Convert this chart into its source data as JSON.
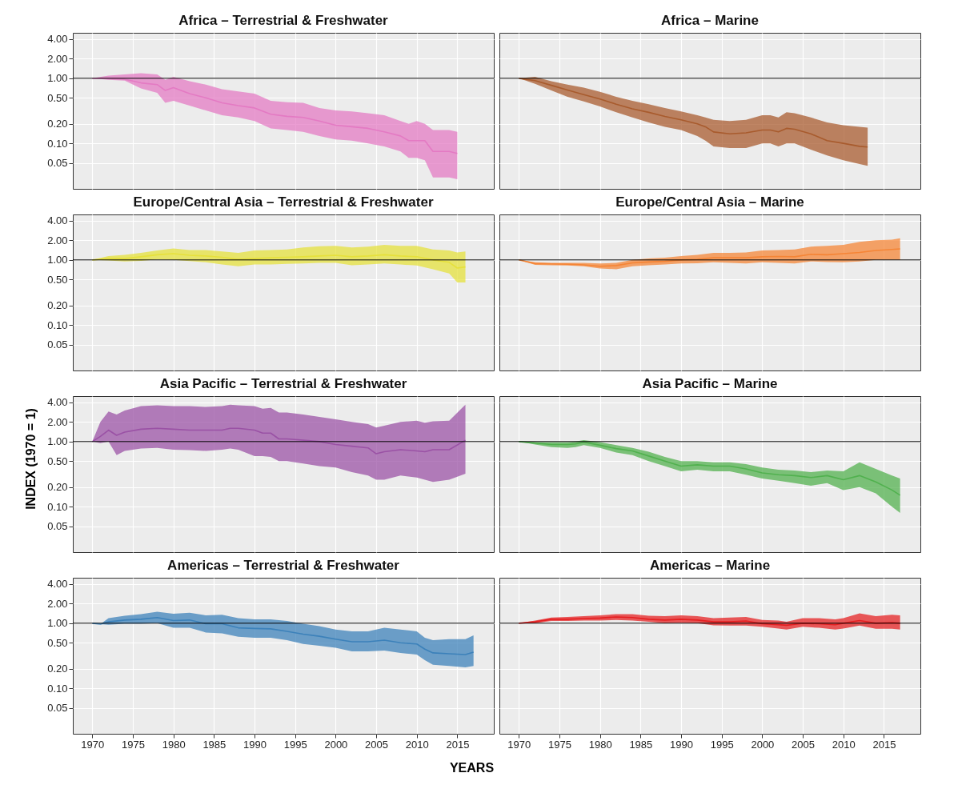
{
  "chart_data": [
    {
      "type": "line",
      "title": "Africa – Terrestrial & Freshwater",
      "log": "y",
      "grid": true,
      "tick_labels": "y",
      "xlim": [
        1967.6,
        2019.5
      ],
      "xticks": [
        1970,
        1975,
        1980,
        1985,
        1990,
        1995,
        2000,
        2005,
        2010,
        2015
      ],
      "ylim": [
        0.02,
        5
      ],
      "yticks": [
        {
          "value": 0.05,
          "label": "0.05"
        },
        {
          "value": 0.1,
          "label": "0.10"
        },
        {
          "value": 0.2,
          "label": "0.20"
        },
        {
          "value": 0.5,
          "label": "0.50"
        },
        {
          "value": 1,
          "label": "1.00"
        },
        {
          "value": 2,
          "label": "2.00"
        },
        {
          "value": 4,
          "label": "4.00"
        }
      ],
      "ref_lines": [
        {
          "axis": "y",
          "value": 1
        }
      ],
      "x": [
        1970,
        1972,
        1974,
        1976,
        1978,
        1979,
        1980,
        1982,
        1984,
        1986,
        1988,
        1990,
        1992,
        1994,
        1996,
        1998,
        2000,
        2002,
        2004,
        2006,
        2008,
        2009,
        2010,
        2011,
        2012,
        2014,
        2015
      ],
      "series": [
        {
          "color": "#e377c2",
          "values": [
            1.0,
            1.0,
            0.97,
            0.85,
            0.8,
            0.65,
            0.72,
            0.58,
            0.5,
            0.42,
            0.38,
            0.35,
            0.28,
            0.26,
            0.25,
            0.22,
            0.19,
            0.18,
            0.17,
            0.15,
            0.13,
            0.11,
            0.11,
            0.11,
            0.075,
            0.075,
            0.07
          ],
          "upper": [
            1.0,
            1.1,
            1.15,
            1.2,
            1.15,
            0.95,
            1.05,
            0.9,
            0.8,
            0.68,
            0.63,
            0.58,
            0.45,
            0.43,
            0.42,
            0.35,
            0.32,
            0.31,
            0.29,
            0.27,
            0.22,
            0.2,
            0.22,
            0.2,
            0.16,
            0.16,
            0.15
          ],
          "lower": [
            1.0,
            0.95,
            0.92,
            0.7,
            0.6,
            0.42,
            0.45,
            0.38,
            0.32,
            0.27,
            0.25,
            0.22,
            0.17,
            0.16,
            0.15,
            0.13,
            0.115,
            0.11,
            0.1,
            0.09,
            0.075,
            0.06,
            0.06,
            0.055,
            0.03,
            0.03,
            0.028
          ]
        }
      ]
    },
    {
      "type": "line",
      "title": "Africa – Marine",
      "log": "y",
      "grid": true,
      "tick_labels": false,
      "xlim": [
        1967.6,
        2019.5
      ],
      "xticks": [
        1970,
        1975,
        1980,
        1985,
        1990,
        1995,
        2000,
        2005,
        2010,
        2015
      ],
      "ylim": [
        0.02,
        5
      ],
      "yticks": [
        0.05,
        0.1,
        0.2,
        0.5,
        1,
        2,
        4
      ],
      "ref_lines": [
        {
          "axis": "y",
          "value": 1
        }
      ],
      "x": [
        1970,
        1972,
        1974,
        1976,
        1978,
        1980,
        1982,
        1984,
        1986,
        1988,
        1990,
        1992,
        1993,
        1994,
        1996,
        1998,
        2000,
        2001,
        2002,
        2003,
        2004,
        2006,
        2008,
        2010,
        2012,
        2013
      ],
      "series": [
        {
          "color": "#a65628",
          "values": [
            1.0,
            0.92,
            0.78,
            0.66,
            0.56,
            0.48,
            0.4,
            0.34,
            0.3,
            0.26,
            0.23,
            0.2,
            0.18,
            0.15,
            0.14,
            0.145,
            0.16,
            0.16,
            0.15,
            0.17,
            0.165,
            0.14,
            0.11,
            0.1,
            0.09,
            0.088
          ],
          "upper": [
            1.0,
            1.05,
            0.9,
            0.8,
            0.72,
            0.62,
            0.52,
            0.45,
            0.4,
            0.35,
            0.31,
            0.27,
            0.25,
            0.23,
            0.22,
            0.23,
            0.27,
            0.27,
            0.25,
            0.3,
            0.29,
            0.25,
            0.21,
            0.19,
            0.18,
            0.175
          ],
          "lower": [
            1.0,
            0.82,
            0.65,
            0.52,
            0.44,
            0.37,
            0.3,
            0.25,
            0.21,
            0.18,
            0.16,
            0.13,
            0.11,
            0.09,
            0.085,
            0.085,
            0.1,
            0.1,
            0.09,
            0.1,
            0.1,
            0.08,
            0.065,
            0.055,
            0.048,
            0.045
          ]
        }
      ]
    },
    {
      "type": "line",
      "title": "Europe/Central Asia – Terrestrial & Freshwater",
      "log": "y",
      "grid": true,
      "tick_labels": "y",
      "xlim": [
        1967.6,
        2019.5
      ],
      "xticks": [
        1970,
        1975,
        1980,
        1985,
        1990,
        1995,
        2000,
        2005,
        2010,
        2015
      ],
      "ylim": [
        0.02,
        5
      ],
      "yticks": [
        {
          "value": 0.05,
          "label": "0.05"
        },
        {
          "value": 0.1,
          "label": "0.10"
        },
        {
          "value": 0.2,
          "label": "0.20"
        },
        {
          "value": 0.5,
          "label": "0.50"
        },
        {
          "value": 1,
          "label": "1.00"
        },
        {
          "value": 2,
          "label": "2.00"
        },
        {
          "value": 4,
          "label": "4.00"
        }
      ],
      "ref_lines": [
        {
          "axis": "y",
          "value": 1
        }
      ],
      "x": [
        1970,
        1972,
        1974,
        1976,
        1978,
        1980,
        1982,
        1984,
        1986,
        1988,
        1990,
        1992,
        1994,
        1996,
        1998,
        2000,
        2002,
        2004,
        2006,
        2008,
        2010,
        2012,
        2014,
        2015,
        2016
      ],
      "series": [
        {
          "color": "#e5e036",
          "values": [
            1.0,
            1.05,
            1.05,
            1.12,
            1.2,
            1.25,
            1.18,
            1.15,
            1.1,
            1.02,
            1.05,
            1.08,
            1.1,
            1.12,
            1.15,
            1.18,
            1.12,
            1.15,
            1.2,
            1.15,
            1.12,
            1.0,
            0.92,
            0.75,
            0.78
          ],
          "upper": [
            1.0,
            1.15,
            1.2,
            1.28,
            1.4,
            1.5,
            1.42,
            1.42,
            1.35,
            1.28,
            1.4,
            1.42,
            1.45,
            1.55,
            1.62,
            1.65,
            1.55,
            1.6,
            1.7,
            1.65,
            1.65,
            1.45,
            1.4,
            1.3,
            1.35
          ],
          "lower": [
            1.0,
            0.98,
            0.95,
            0.97,
            1.02,
            1.0,
            0.96,
            0.92,
            0.85,
            0.8,
            0.85,
            0.85,
            0.87,
            0.88,
            0.9,
            0.9,
            0.83,
            0.85,
            0.88,
            0.85,
            0.82,
            0.72,
            0.62,
            0.45,
            0.45
          ]
        }
      ]
    },
    {
      "type": "line",
      "title": "Europe/Central Asia – Marine",
      "log": "y",
      "grid": true,
      "tick_labels": false,
      "xlim": [
        1967.6,
        2019.5
      ],
      "xticks": [
        1970,
        1975,
        1980,
        1985,
        1990,
        1995,
        2000,
        2005,
        2010,
        2015
      ],
      "ylim": [
        0.02,
        5
      ],
      "yticks": [
        0.05,
        0.1,
        0.2,
        0.5,
        1,
        2,
        4
      ],
      "ref_lines": [
        {
          "axis": "y",
          "value": 1
        }
      ],
      "x": [
        1970,
        1972,
        1974,
        1976,
        1978,
        1980,
        1982,
        1984,
        1986,
        1988,
        1990,
        1992,
        1994,
        1996,
        1998,
        2000,
        2002,
        2004,
        2006,
        2008,
        2010,
        2012,
        2014,
        2016,
        2017
      ],
      "series": [
        {
          "color": "#f58231",
          "values": [
            1.0,
            0.88,
            0.87,
            0.86,
            0.84,
            0.8,
            0.82,
            0.9,
            0.93,
            0.95,
            1.0,
            1.02,
            1.08,
            1.08,
            1.08,
            1.12,
            1.13,
            1.12,
            1.22,
            1.2,
            1.25,
            1.3,
            1.4,
            1.45,
            1.48
          ],
          "upper": [
            1.0,
            0.92,
            0.9,
            0.9,
            0.9,
            0.88,
            0.9,
            1.0,
            1.05,
            1.08,
            1.15,
            1.2,
            1.28,
            1.28,
            1.3,
            1.4,
            1.42,
            1.45,
            1.6,
            1.65,
            1.7,
            1.9,
            2.0,
            2.05,
            2.15
          ],
          "lower": [
            1.0,
            0.84,
            0.83,
            0.82,
            0.8,
            0.74,
            0.72,
            0.8,
            0.83,
            0.85,
            0.88,
            0.89,
            0.92,
            0.9,
            0.88,
            0.92,
            0.9,
            0.88,
            0.95,
            0.93,
            0.92,
            0.95,
            1.0,
            1.0,
            1.0
          ]
        }
      ]
    },
    {
      "type": "line",
      "title": "Asia Pacific – Terrestrial & Freshwater",
      "ylabel": "INDEX (1970 = 1)",
      "log": "y",
      "grid": true,
      "tick_labels": "y",
      "xlim": [
        1967.6,
        2019.5
      ],
      "xticks": [
        1970,
        1975,
        1980,
        1985,
        1990,
        1995,
        2000,
        2005,
        2010,
        2015
      ],
      "ylim": [
        0.02,
        5
      ],
      "yticks": [
        {
          "value": 0.05,
          "label": "0.05"
        },
        {
          "value": 0.1,
          "label": "0.10"
        },
        {
          "value": 0.2,
          "label": "0.20"
        },
        {
          "value": 0.5,
          "label": "0.50"
        },
        {
          "value": 1,
          "label": "1.00"
        },
        {
          "value": 2,
          "label": "2.00"
        },
        {
          "value": 4,
          "label": "4.00"
        }
      ],
      "ref_lines": [
        {
          "axis": "y",
          "value": 1
        }
      ],
      "x": [
        1970,
        1971,
        1972,
        1973,
        1974,
        1976,
        1978,
        1980,
        1982,
        1984,
        1986,
        1987,
        1988,
        1990,
        1991,
        1992,
        1993,
        1994,
        1996,
        1998,
        2000,
        2002,
        2004,
        2005,
        2006,
        2008,
        2010,
        2011,
        2012,
        2014,
        2016
      ],
      "series": [
        {
          "color": "#984ea3",
          "values": [
            1.0,
            1.2,
            1.5,
            1.25,
            1.4,
            1.55,
            1.6,
            1.55,
            1.5,
            1.5,
            1.5,
            1.6,
            1.6,
            1.5,
            1.35,
            1.35,
            1.1,
            1.1,
            1.05,
            1.0,
            0.9,
            0.85,
            0.8,
            0.65,
            0.7,
            0.75,
            0.72,
            0.7,
            0.75,
            0.75,
            1.05
          ],
          "upper": [
            1.0,
            2.0,
            2.9,
            2.6,
            3.0,
            3.5,
            3.6,
            3.5,
            3.5,
            3.4,
            3.5,
            3.7,
            3.6,
            3.5,
            3.2,
            3.3,
            2.8,
            2.8,
            2.6,
            2.4,
            2.2,
            2.0,
            1.85,
            1.65,
            1.75,
            2.0,
            2.1,
            1.95,
            2.05,
            2.1,
            3.7
          ],
          "lower": [
            1.0,
            0.95,
            1.0,
            0.62,
            0.72,
            0.78,
            0.8,
            0.75,
            0.74,
            0.72,
            0.75,
            0.78,
            0.75,
            0.6,
            0.6,
            0.58,
            0.5,
            0.5,
            0.46,
            0.42,
            0.4,
            0.34,
            0.3,
            0.26,
            0.26,
            0.3,
            0.28,
            0.26,
            0.24,
            0.26,
            0.32
          ]
        }
      ]
    },
    {
      "type": "line",
      "title": "Asia Pacific – Marine",
      "log": "y",
      "grid": true,
      "tick_labels": false,
      "xlim": [
        1967.6,
        2019.5
      ],
      "xticks": [
        1970,
        1975,
        1980,
        1985,
        1990,
        1995,
        2000,
        2005,
        2010,
        2015
      ],
      "ylim": [
        0.02,
        5
      ],
      "yticks": [
        0.05,
        0.1,
        0.2,
        0.5,
        1,
        2,
        4
      ],
      "ref_lines": [
        {
          "axis": "y",
          "value": 1
        }
      ],
      "x": [
        1970,
        1972,
        1974,
        1976,
        1977,
        1978,
        1980,
        1982,
        1984,
        1986,
        1988,
        1990,
        1992,
        1994,
        1996,
        1998,
        2000,
        2002,
        2004,
        2006,
        2008,
        2010,
        2012,
        2014,
        2016,
        2017
      ],
      "series": [
        {
          "color": "#4daf4a",
          "values": [
            1.0,
            0.95,
            0.9,
            0.9,
            0.92,
            0.98,
            0.88,
            0.78,
            0.72,
            0.6,
            0.5,
            0.42,
            0.44,
            0.42,
            0.42,
            0.38,
            0.33,
            0.31,
            0.3,
            0.28,
            0.3,
            0.26,
            0.3,
            0.24,
            0.18,
            0.15
          ],
          "upper": [
            1.0,
            0.98,
            0.98,
            0.98,
            1.0,
            1.05,
            0.98,
            0.88,
            0.8,
            0.7,
            0.58,
            0.5,
            0.5,
            0.48,
            0.48,
            0.45,
            0.4,
            0.37,
            0.36,
            0.34,
            0.36,
            0.35,
            0.48,
            0.38,
            0.3,
            0.27
          ],
          "lower": [
            1.0,
            0.9,
            0.82,
            0.8,
            0.82,
            0.88,
            0.8,
            0.68,
            0.62,
            0.5,
            0.42,
            0.35,
            0.37,
            0.35,
            0.35,
            0.31,
            0.27,
            0.25,
            0.23,
            0.21,
            0.23,
            0.18,
            0.2,
            0.16,
            0.1,
            0.08
          ]
        }
      ]
    },
    {
      "type": "line",
      "title": "Americas – Terrestrial & Freshwater",
      "xlabel": "YEARS",
      "log": "y",
      "grid": true,
      "xlim": [
        1967.6,
        2019.5
      ],
      "xticks": [
        1970,
        1975,
        1980,
        1985,
        1990,
        1995,
        2000,
        2005,
        2010,
        2015
      ],
      "ylim": [
        0.02,
        5
      ],
      "yticks": [
        {
          "value": 0.05,
          "label": "0.05"
        },
        {
          "value": 0.1,
          "label": "0.10"
        },
        {
          "value": 0.2,
          "label": "0.20"
        },
        {
          "value": 0.5,
          "label": "0.50"
        },
        {
          "value": 1,
          "label": "1.00"
        },
        {
          "value": 2,
          "label": "2.00"
        },
        {
          "value": 4,
          "label": "4.00"
        }
      ],
      "ref_lines": [
        {
          "axis": "y",
          "value": 1
        }
      ],
      "x": [
        1970,
        1971,
        1972,
        1974,
        1976,
        1978,
        1980,
        1982,
        1984,
        1986,
        1988,
        1990,
        1992,
        1994,
        1996,
        1998,
        2000,
        2002,
        2004,
        2006,
        2008,
        2010,
        2011,
        2012,
        2014,
        2016,
        2017
      ],
      "series": [
        {
          "color": "#377eb8",
          "values": [
            1.0,
            0.97,
            1.05,
            1.12,
            1.15,
            1.22,
            1.1,
            1.12,
            0.98,
            0.98,
            0.85,
            0.83,
            0.82,
            0.75,
            0.68,
            0.63,
            0.57,
            0.52,
            0.52,
            0.55,
            0.5,
            0.48,
            0.4,
            0.35,
            0.34,
            0.33,
            0.36
          ],
          "upper": [
            1.0,
            0.97,
            1.2,
            1.3,
            1.38,
            1.5,
            1.4,
            1.45,
            1.32,
            1.35,
            1.2,
            1.15,
            1.15,
            1.08,
            0.98,
            0.9,
            0.8,
            0.75,
            0.75,
            0.85,
            0.8,
            0.75,
            0.6,
            0.55,
            0.57,
            0.57,
            0.65
          ],
          "lower": [
            1.0,
            0.97,
            0.95,
            0.98,
            0.98,
            1.0,
            0.85,
            0.85,
            0.72,
            0.7,
            0.62,
            0.6,
            0.6,
            0.55,
            0.48,
            0.45,
            0.42,
            0.37,
            0.37,
            0.38,
            0.35,
            0.33,
            0.27,
            0.23,
            0.22,
            0.21,
            0.22
          ]
        }
      ]
    },
    {
      "type": "line",
      "title": "Americas – Marine",
      "log": "y",
      "grid": true,
      "tick_labels": "x",
      "xlim": [
        1967.6,
        2019.5
      ],
      "xticks": [
        1970,
        1975,
        1980,
        1985,
        1990,
        1995,
        2000,
        2005,
        2010,
        2015
      ],
      "ylim": [
        0.02,
        5
      ],
      "yticks": [
        0.05,
        0.1,
        0.2,
        0.5,
        1,
        2,
        4
      ],
      "ref_lines": [
        {
          "axis": "y",
          "value": 1
        }
      ],
      "x": [
        1970,
        1972,
        1974,
        1976,
        1978,
        1980,
        1982,
        1984,
        1986,
        1988,
        1990,
        1992,
        1994,
        1996,
        1998,
        2000,
        2002,
        2003,
        2005,
        2007,
        2009,
        2010,
        2012,
        2014,
        2016,
        2017
      ],
      "series": [
        {
          "color": "#e41a1c",
          "values": [
            1.0,
            1.05,
            1.15,
            1.15,
            1.18,
            1.2,
            1.25,
            1.22,
            1.15,
            1.12,
            1.15,
            1.12,
            1.05,
            1.05,
            1.08,
            0.98,
            0.95,
            0.93,
            1.0,
            0.98,
            0.95,
            1.0,
            1.1,
            1.0,
            1.02,
            1.0
          ],
          "upper": [
            1.0,
            1.1,
            1.22,
            1.25,
            1.28,
            1.32,
            1.38,
            1.38,
            1.3,
            1.28,
            1.32,
            1.28,
            1.2,
            1.22,
            1.25,
            1.12,
            1.1,
            1.05,
            1.2,
            1.2,
            1.15,
            1.2,
            1.42,
            1.28,
            1.35,
            1.32
          ],
          "lower": [
            1.0,
            1.0,
            1.08,
            1.08,
            1.1,
            1.1,
            1.12,
            1.1,
            1.05,
            1.0,
            1.02,
            1.0,
            0.93,
            0.92,
            0.92,
            0.88,
            0.83,
            0.8,
            0.88,
            0.85,
            0.8,
            0.83,
            0.92,
            0.82,
            0.82,
            0.8
          ]
        }
      ]
    }
  ]
}
